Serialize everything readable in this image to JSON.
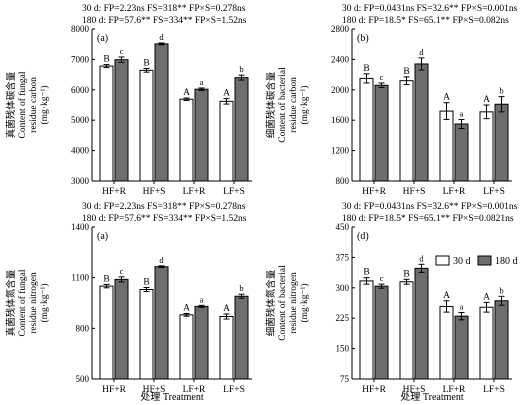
{
  "stat_lines": {
    "fungal_carbon": [
      "30 d: FP=2.23ns  FS=318**  FP×S=0.278ns",
      "180 d: FP=57.6**  FS=334**  FP×S=1.52ns"
    ],
    "bacterial_carbon": [
      "30 d: FP=0.0431ns  FS=32.6**  FP×S=0.001ns",
      "180 d: FP=18.5*  FS=65.1**  FP×S=0.082ns"
    ],
    "fungal_nitrogen": [
      "30 d: FP=2.23ns  FS=318**  FP×S=0.278ns",
      "180 d: FP=57.6**  FS=334**  FP×S=1.52ns"
    ],
    "bacterial_nitrogen": [
      "30 d: FP=0.0431ns  FS=32.6**  FP×S=0.001ns",
      "180 d: FP=18.5*  FS=65.1**  FP×S=0.0821ns"
    ]
  },
  "xlabel": "处理 Treatment",
  "legend": {
    "s30": "30 d",
    "s180": "180 d"
  },
  "chart_data": [
    {
      "id": "fungal_carbon",
      "type": "bar",
      "panel_label": "(a)",
      "categories": [
        "HF+R",
        "HF+S",
        "LF+R",
        "LF+S"
      ],
      "ylabel_cn": "真菌残体碳含量",
      "ylabel_en1": "Content of fungal",
      "ylabel_en2": "residue carbon",
      "ylabel_unit": "(mg·kg⁻¹)",
      "ylim": [
        3000,
        8000
      ],
      "ticks": [
        3000,
        4000,
        5000,
        6000,
        7000,
        8000
      ],
      "series": [
        {
          "name": "30 d",
          "values": [
            6780,
            6640,
            5690,
            5620
          ],
          "errors": [
            50,
            60,
            40,
            90
          ],
          "letters": [
            "B",
            "B",
            "A",
            "A"
          ]
        },
        {
          "name": "180 d",
          "values": [
            6990,
            7510,
            6020,
            6400
          ],
          "errors": [
            90,
            30,
            40,
            80
          ],
          "letters": [
            "c",
            "d",
            "a",
            "b"
          ]
        }
      ]
    },
    {
      "id": "bacterial_carbon",
      "type": "bar",
      "panel_label": "(b)",
      "categories": [
        "HF+R",
        "HF+S",
        "LF+R",
        "LF+S"
      ],
      "ylabel_cn": "细菌残体碳含量",
      "ylabel_en1": "Content of bacterial",
      "ylabel_en2": "residue carbon",
      "ylabel_unit": "(mg·kg⁻¹)",
      "ylim": [
        800,
        2800
      ],
      "ticks": [
        800,
        1200,
        1600,
        2000,
        2400,
        2800
      ],
      "series": [
        {
          "name": "30 d",
          "values": [
            2150,
            2120,
            1720,
            1710
          ],
          "errors": [
            60,
            50,
            110,
            90
          ],
          "letters": [
            "B",
            "B",
            "A",
            "A"
          ]
        },
        {
          "name": "180 d",
          "values": [
            2060,
            2340,
            1550,
            1810
          ],
          "errors": [
            30,
            80,
            60,
            100
          ],
          "letters": [
            "c",
            "d",
            "a",
            "b"
          ]
        }
      ]
    },
    {
      "id": "fungal_nitrogen",
      "type": "bar",
      "panel_label": "(a)",
      "categories": [
        "HF+R",
        "HF+S",
        "LF+R",
        "LF+S"
      ],
      "ylabel_cn": "真菌残体氮含量",
      "ylabel_en1": "Content of fungal",
      "ylabel_en2": "residue nitrogen",
      "ylabel_unit": "(mg·kg⁻¹)",
      "ylim": [
        500,
        1400
      ],
      "ticks": [
        500,
        800,
        1100,
        1400
      ],
      "series": [
        {
          "name": "30 d",
          "values": [
            1050,
            1030,
            880,
            870
          ],
          "errors": [
            10,
            12,
            8,
            15
          ],
          "letters": [
            "B",
            "B",
            "A",
            "A"
          ]
        },
        {
          "name": "180 d",
          "values": [
            1090,
            1165,
            930,
            990
          ],
          "errors": [
            15,
            5,
            6,
            12
          ],
          "letters": [
            "c",
            "d",
            "a",
            "b"
          ]
        }
      ]
    },
    {
      "id": "bacterial_nitrogen",
      "type": "bar",
      "panel_label": "(d)",
      "categories": [
        "HF+R",
        "HF+S",
        "LF+R",
        "LF+S"
      ],
      "ylabel_cn": "细菌残体氮含量",
      "ylabel_en1": "Content of bacterial",
      "ylabel_en2": "residue nitrogen",
      "ylabel_unit": "(mg·kg⁻¹)",
      "ylim": [
        75,
        450
      ],
      "ticks": [
        75,
        150,
        225,
        300,
        375,
        450
      ],
      "series": [
        {
          "name": "30 d",
          "values": [
            317,
            315,
            254,
            252
          ],
          "errors": [
            8,
            6,
            14,
            12
          ],
          "letters": [
            "B",
            "B",
            "A",
            "A"
          ]
        },
        {
          "name": "180 d",
          "values": [
            304,
            348,
            230,
            268
          ],
          "errors": [
            5,
            10,
            9,
            11
          ],
          "letters": [
            "c",
            "d",
            "a",
            "b"
          ]
        }
      ]
    }
  ]
}
